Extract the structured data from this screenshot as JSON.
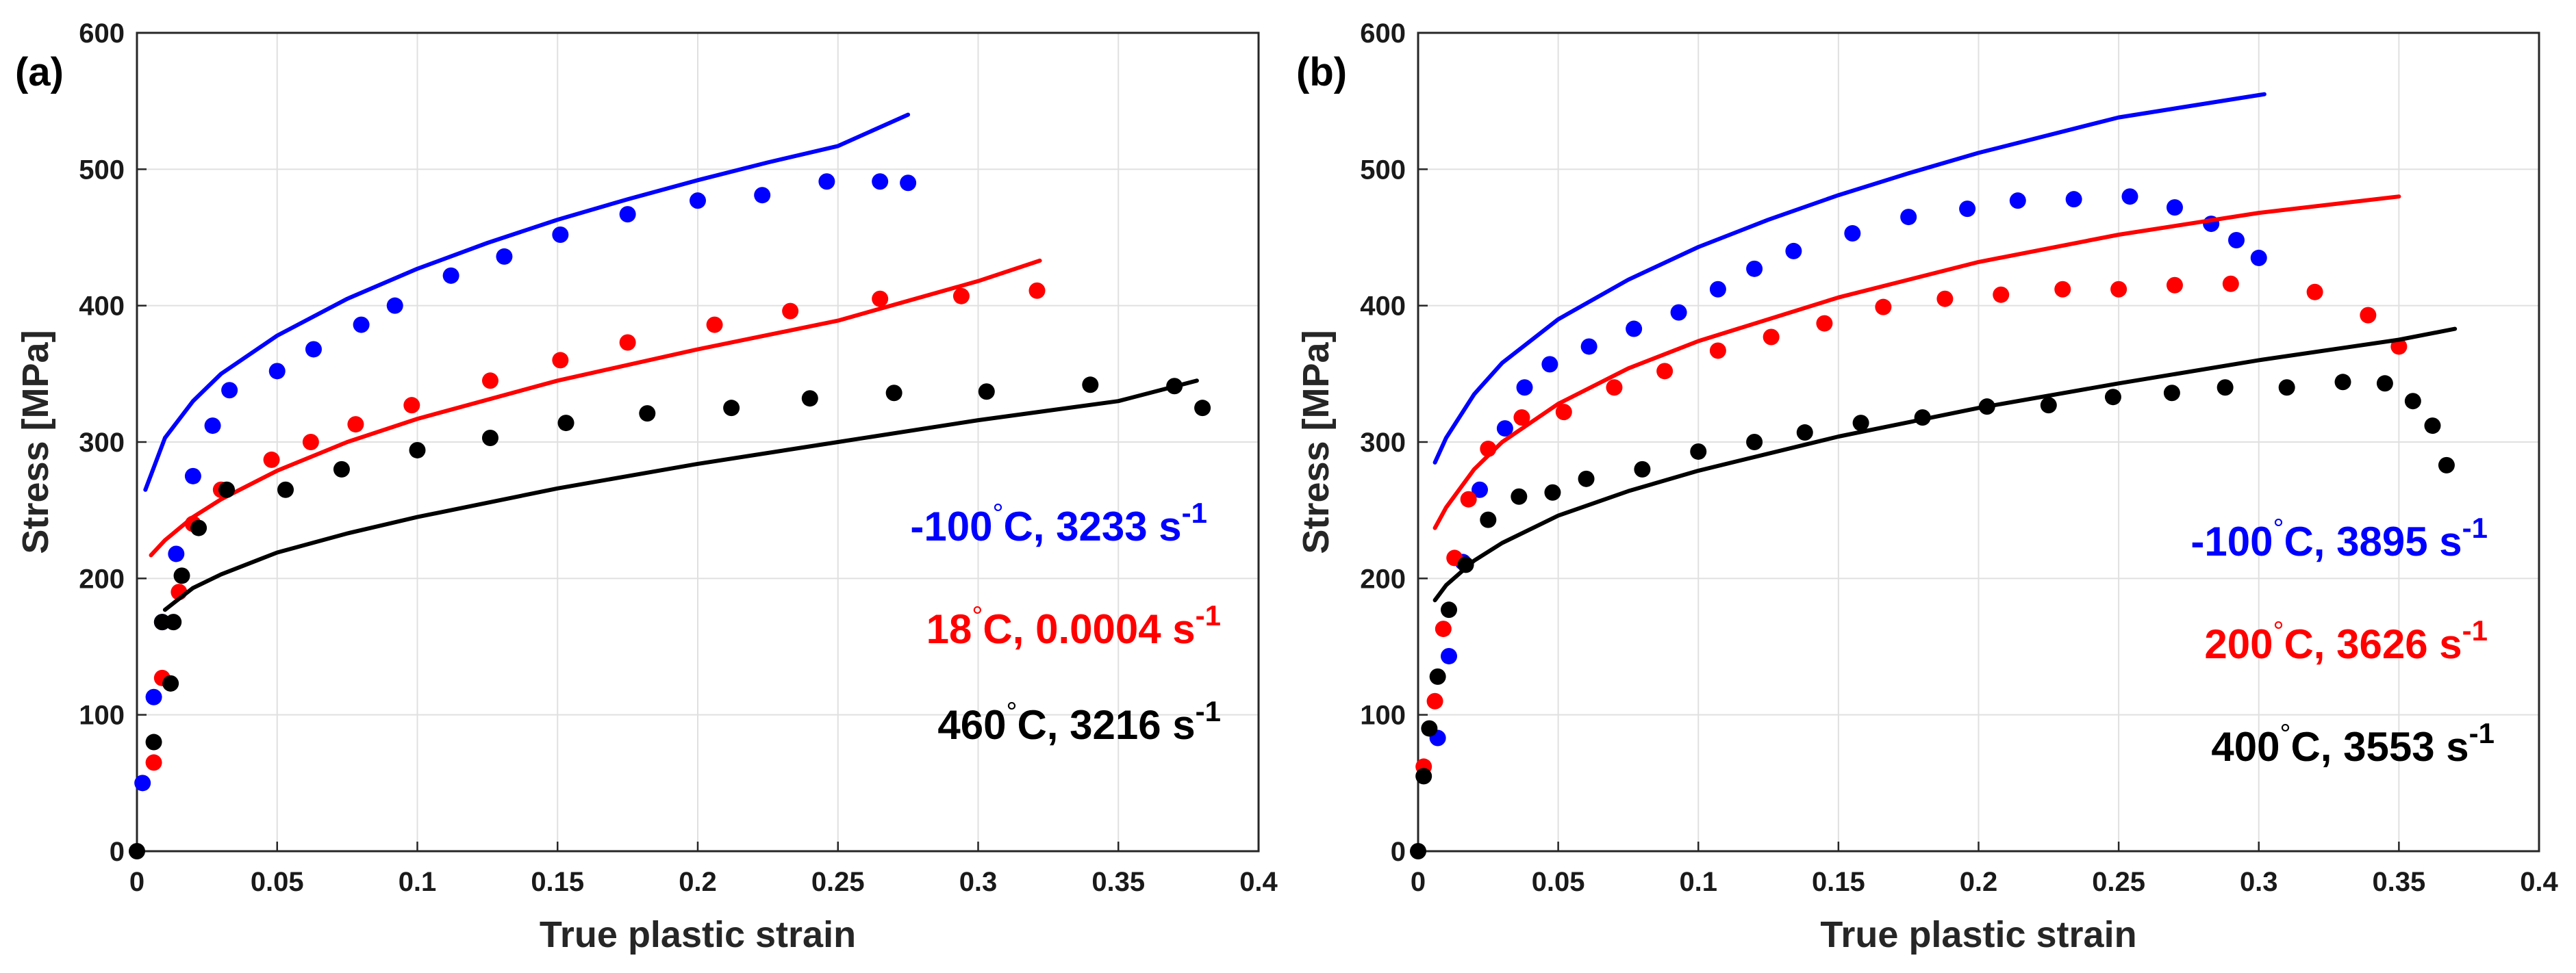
{
  "chart_data": [
    {
      "type": "scatter",
      "panel_label": "(a)",
      "xlabel": "True plastic strain",
      "ylabel": "Stress [MPa]",
      "xlim": [
        0,
        0.4
      ],
      "ylim": [
        0,
        600
      ],
      "xticks": [
        "0",
        "0.05",
        "0.1",
        "0.15",
        "0.2",
        "0.25",
        "0.3",
        "0.35",
        "0.4"
      ],
      "yticks": [
        "0",
        "100",
        "200",
        "300",
        "400",
        "500",
        "600"
      ],
      "grid": true,
      "series": [
        {
          "color": "#0000ff",
          "label_parts": [
            "-100",
            "°",
            "C, 3233 s",
            "-1"
          ],
          "points": [
            [
              0.002,
              50
            ],
            [
              0.006,
              113
            ],
            [
              0.009,
              168
            ],
            [
              0.014,
              218
            ],
            [
              0.02,
              275
            ],
            [
              0.027,
              312
            ],
            [
              0.033,
              338
            ],
            [
              0.05,
              352
            ],
            [
              0.063,
              368
            ],
            [
              0.08,
              386
            ],
            [
              0.092,
              400
            ],
            [
              0.112,
              422
            ],
            [
              0.131,
              436
            ],
            [
              0.151,
              452
            ],
            [
              0.175,
              467
            ],
            [
              0.2,
              477
            ],
            [
              0.223,
              481
            ],
            [
              0.246,
              491
            ],
            [
              0.265,
              491
            ],
            [
              0.275,
              490
            ]
          ],
          "fit": [
            [
              0.003,
              265
            ],
            [
              0.01,
              303
            ],
            [
              0.02,
              330
            ],
            [
              0.03,
              350
            ],
            [
              0.05,
              378
            ],
            [
              0.075,
              405
            ],
            [
              0.1,
              427
            ],
            [
              0.125,
              446
            ],
            [
              0.15,
              463
            ],
            [
              0.175,
              478
            ],
            [
              0.2,
              492
            ],
            [
              0.225,
              505
            ],
            [
              0.25,
              517
            ],
            [
              0.275,
              540
            ]
          ]
        },
        {
          "color": "#ff0000",
          "label_parts": [
            "18",
            "°",
            "C, 0.0004 s",
            "-1"
          ],
          "points": [
            [
              0.006,
              65
            ],
            [
              0.009,
              127
            ],
            [
              0.015,
              190
            ],
            [
              0.02,
              240
            ],
            [
              0.03,
              265
            ],
            [
              0.048,
              287
            ],
            [
              0.062,
              300
            ],
            [
              0.078,
              313
            ],
            [
              0.098,
              327
            ],
            [
              0.126,
              345
            ],
            [
              0.151,
              360
            ],
            [
              0.175,
              373
            ],
            [
              0.206,
              386
            ],
            [
              0.233,
              396
            ],
            [
              0.265,
              405
            ],
            [
              0.294,
              407
            ],
            [
              0.321,
              411
            ]
          ],
          "fit": [
            [
              0.005,
              217
            ],
            [
              0.01,
              228
            ],
            [
              0.02,
              245
            ],
            [
              0.03,
              258
            ],
            [
              0.05,
              279
            ],
            [
              0.075,
              300
            ],
            [
              0.1,
              317
            ],
            [
              0.15,
              345
            ],
            [
              0.2,
              368
            ],
            [
              0.25,
              389
            ],
            [
              0.3,
              418
            ],
            [
              0.322,
              433
            ]
          ]
        },
        {
          "color": "#000000",
          "label_parts": [
            "460",
            "°",
            "C, 3216 s",
            "-1"
          ],
          "points": [
            [
              0.0,
              0
            ],
            [
              0.006,
              80
            ],
            [
              0.009,
              168
            ],
            [
              0.012,
              123
            ],
            [
              0.013,
              168
            ],
            [
              0.016,
              202
            ],
            [
              0.022,
              237
            ],
            [
              0.032,
              265
            ],
            [
              0.053,
              265
            ],
            [
              0.073,
              280
            ],
            [
              0.1,
              294
            ],
            [
              0.126,
              303
            ],
            [
              0.153,
              314
            ],
            [
              0.182,
              321
            ],
            [
              0.212,
              325
            ],
            [
              0.24,
              332
            ],
            [
              0.27,
              336
            ],
            [
              0.303,
              337
            ],
            [
              0.34,
              342
            ],
            [
              0.37,
              341
            ],
            [
              0.38,
              325
            ]
          ],
          "fit": [
            [
              0.01,
              177
            ],
            [
              0.02,
              193
            ],
            [
              0.03,
              203
            ],
            [
              0.05,
              219
            ],
            [
              0.075,
              233
            ],
            [
              0.1,
              245
            ],
            [
              0.15,
              266
            ],
            [
              0.2,
              284
            ],
            [
              0.25,
              300
            ],
            [
              0.3,
              316
            ],
            [
              0.35,
              330
            ],
            [
              0.378,
              345
            ]
          ]
        }
      ]
    },
    {
      "type": "scatter",
      "panel_label": "(b)",
      "xlabel": "True plastic strain",
      "ylabel": "Stress [MPa]",
      "xlim": [
        0,
        0.4
      ],
      "ylim": [
        0,
        600
      ],
      "xticks": [
        "0",
        "0.05",
        "0.1",
        "0.15",
        "0.2",
        "0.25",
        "0.3",
        "0.35",
        "0.4"
      ],
      "yticks": [
        "0",
        "100",
        "200",
        "300",
        "400",
        "500",
        "600"
      ],
      "grid": true,
      "series": [
        {
          "color": "#0000ff",
          "label_parts": [
            "-100",
            "°",
            "C, 3895 s",
            "-1"
          ],
          "points": [
            [
              0.007,
              83
            ],
            [
              0.011,
              143
            ],
            [
              0.016,
              212
            ],
            [
              0.022,
              265
            ],
            [
              0.031,
              310
            ],
            [
              0.038,
              340
            ],
            [
              0.047,
              357
            ],
            [
              0.061,
              370
            ],
            [
              0.077,
              383
            ],
            [
              0.093,
              395
            ],
            [
              0.107,
              412
            ],
            [
              0.12,
              427
            ],
            [
              0.134,
              440
            ],
            [
              0.155,
              453
            ],
            [
              0.175,
              465
            ],
            [
              0.196,
              471
            ],
            [
              0.214,
              477
            ],
            [
              0.234,
              478
            ],
            [
              0.254,
              480
            ],
            [
              0.27,
              472
            ],
            [
              0.283,
              460
            ],
            [
              0.292,
              448
            ],
            [
              0.3,
              435
            ]
          ],
          "fit": [
            [
              0.006,
              285
            ],
            [
              0.01,
              303
            ],
            [
              0.02,
              335
            ],
            [
              0.03,
              358
            ],
            [
              0.05,
              390
            ],
            [
              0.075,
              419
            ],
            [
              0.1,
              443
            ],
            [
              0.125,
              463
            ],
            [
              0.15,
              481
            ],
            [
              0.175,
              497
            ],
            [
              0.2,
              512
            ],
            [
              0.25,
              538
            ],
            [
              0.302,
              555
            ]
          ]
        },
        {
          "color": "#ff0000",
          "label_parts": [
            "200",
            "°",
            "C, 3626 s",
            "-1"
          ],
          "points": [
            [
              0.002,
              62
            ],
            [
              0.006,
              110
            ],
            [
              0.009,
              163
            ],
            [
              0.013,
              215
            ],
            [
              0.018,
              258
            ],
            [
              0.025,
              295
            ],
            [
              0.037,
              318
            ],
            [
              0.052,
              322
            ],
            [
              0.07,
              340
            ],
            [
              0.088,
              352
            ],
            [
              0.107,
              367
            ],
            [
              0.126,
              377
            ],
            [
              0.145,
              387
            ],
            [
              0.166,
              399
            ],
            [
              0.188,
              405
            ],
            [
              0.208,
              408
            ],
            [
              0.23,
              412
            ],
            [
              0.25,
              412
            ],
            [
              0.27,
              415
            ],
            [
              0.29,
              416
            ],
            [
              0.32,
              410
            ],
            [
              0.339,
              393
            ],
            [
              0.35,
              370
            ]
          ],
          "fit": [
            [
              0.006,
              237
            ],
            [
              0.01,
              252
            ],
            [
              0.02,
              280
            ],
            [
              0.03,
              300
            ],
            [
              0.05,
              328
            ],
            [
              0.075,
              354
            ],
            [
              0.1,
              374
            ],
            [
              0.15,
              406
            ],
            [
              0.2,
              432
            ],
            [
              0.25,
              452
            ],
            [
              0.3,
              468
            ],
            [
              0.35,
              480
            ]
          ]
        },
        {
          "color": "#000000",
          "label_parts": [
            "400",
            "°",
            "C, 3553 s",
            "-1"
          ],
          "points": [
            [
              0.0,
              0
            ],
            [
              0.002,
              55
            ],
            [
              0.004,
              90
            ],
            [
              0.007,
              128
            ],
            [
              0.011,
              177
            ],
            [
              0.017,
              210
            ],
            [
              0.025,
              243
            ],
            [
              0.036,
              260
            ],
            [
              0.048,
              263
            ],
            [
              0.06,
              273
            ],
            [
              0.08,
              280
            ],
            [
              0.1,
              293
            ],
            [
              0.12,
              300
            ],
            [
              0.138,
              307
            ],
            [
              0.158,
              314
            ],
            [
              0.18,
              318
            ],
            [
              0.203,
              326
            ],
            [
              0.225,
              327
            ],
            [
              0.248,
              333
            ],
            [
              0.269,
              336
            ],
            [
              0.288,
              340
            ],
            [
              0.31,
              340
            ],
            [
              0.33,
              344
            ],
            [
              0.345,
              343
            ],
            [
              0.355,
              330
            ],
            [
              0.362,
              312
            ],
            [
              0.367,
              283
            ]
          ],
          "fit": [
            [
              0.006,
              184
            ],
            [
              0.01,
              195
            ],
            [
              0.02,
              213
            ],
            [
              0.03,
              226
            ],
            [
              0.05,
              246
            ],
            [
              0.075,
              264
            ],
            [
              0.1,
              279
            ],
            [
              0.15,
              304
            ],
            [
              0.2,
              325
            ],
            [
              0.25,
              343
            ],
            [
              0.3,
              360
            ],
            [
              0.35,
              375
            ],
            [
              0.37,
              383
            ]
          ]
        }
      ]
    }
  ]
}
